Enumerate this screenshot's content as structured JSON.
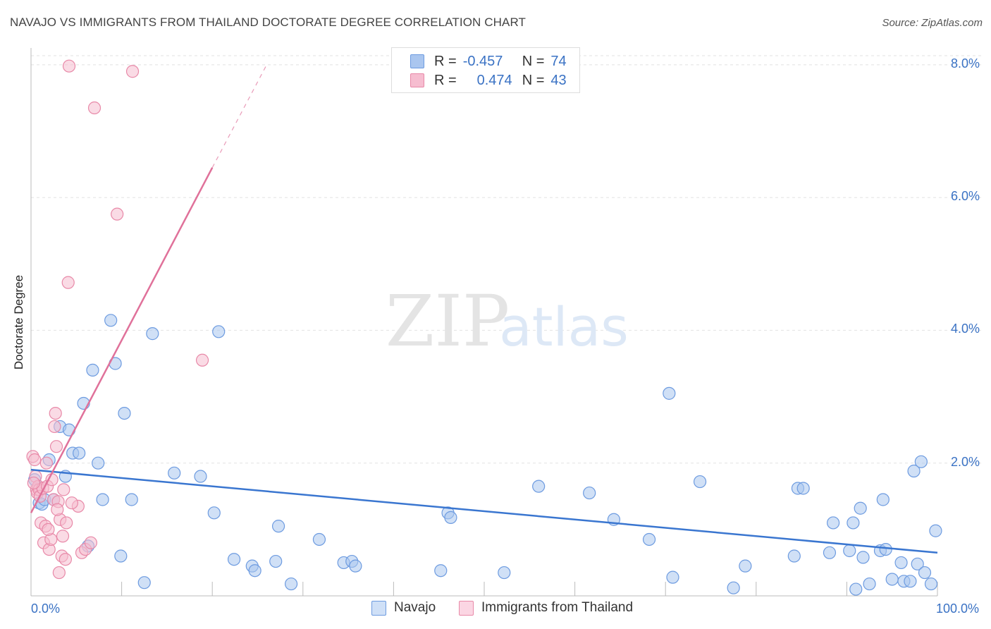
{
  "title": "NAVAJO VS IMMIGRANTS FROM THAILAND DOCTORATE DEGREE CORRELATION CHART",
  "source": "Source: ZipAtlas.com",
  "watermark": {
    "zip": "ZIP",
    "atlas": "atlas"
  },
  "legend": {
    "rows": [
      {
        "r_label": "R =",
        "r_value": "-0.457",
        "n_label": "N =",
        "n_value": "74"
      },
      {
        "r_label": "R =",
        "r_value": "0.474",
        "n_label": "N =",
        "n_value": "43"
      }
    ]
  },
  "chart_data": {
    "type": "scatter",
    "title": "NAVAJO VS IMMIGRANTS FROM THAILAND DOCTORATE DEGREE CORRELATION CHART",
    "xlabel": "",
    "ylabel": "Doctorate Degree",
    "xlim": [
      0,
      100
    ],
    "ylim": [
      0,
      8.2
    ],
    "x_tick_labels": [
      "0.0%",
      "100.0%"
    ],
    "y_ticks": [
      2,
      4,
      6,
      8
    ],
    "y_tick_labels": [
      "2.0%",
      "4.0%",
      "6.0%",
      "8.0%"
    ],
    "grid": true,
    "legend_position": "bottom",
    "colors": {
      "navajo_fill": "#aac6ef",
      "navajo_stroke": "#6d9be0",
      "navajo_line": "#3a76d0",
      "thai_fill": "#f6bdd0",
      "thai_stroke": "#e889a8",
      "thai_line": "#e0719a",
      "axis_text": "#3a72c4"
    },
    "series": [
      {
        "name": "Navajo",
        "trend": {
          "x": [
            0,
            100
          ],
          "y": [
            1.9,
            0.65
          ]
        },
        "points": [
          [
            0.4,
            1.75
          ],
          [
            0.9,
            1.4
          ],
          [
            1.2,
            1.38
          ],
          [
            1.5,
            1.45
          ],
          [
            2.0,
            2.05
          ],
          [
            2.5,
            1.45
          ],
          [
            3.2,
            2.55
          ],
          [
            3.8,
            1.8
          ],
          [
            4.2,
            2.5
          ],
          [
            4.6,
            2.15
          ],
          [
            5.3,
            2.15
          ],
          [
            5.8,
            2.9
          ],
          [
            6.3,
            0.75
          ],
          [
            6.8,
            3.4
          ],
          [
            7.4,
            2.0
          ],
          [
            7.9,
            1.45
          ],
          [
            8.8,
            4.15
          ],
          [
            9.3,
            3.5
          ],
          [
            9.9,
            0.6
          ],
          [
            10.3,
            2.75
          ],
          [
            11.1,
            1.45
          ],
          [
            12.5,
            0.2
          ],
          [
            13.4,
            3.95
          ],
          [
            15.8,
            1.85
          ],
          [
            18.7,
            1.8
          ],
          [
            20.2,
            1.25
          ],
          [
            20.7,
            3.98
          ],
          [
            22.4,
            0.55
          ],
          [
            24.4,
            0.45
          ],
          [
            24.7,
            0.38
          ],
          [
            27.0,
            0.52
          ],
          [
            27.3,
            1.05
          ],
          [
            28.7,
            0.18
          ],
          [
            31.8,
            0.85
          ],
          [
            34.5,
            0.5
          ],
          [
            35.4,
            0.52
          ],
          [
            35.8,
            0.45
          ],
          [
            45.2,
            0.38
          ],
          [
            46.0,
            1.25
          ],
          [
            46.3,
            1.18
          ],
          [
            52.2,
            0.35
          ],
          [
            56.0,
            1.65
          ],
          [
            61.6,
            1.55
          ],
          [
            64.3,
            1.15
          ],
          [
            68.2,
            0.85
          ],
          [
            70.4,
            3.05
          ],
          [
            70.8,
            0.28
          ],
          [
            73.8,
            1.72
          ],
          [
            77.5,
            0.12
          ],
          [
            78.8,
            0.45
          ],
          [
            84.2,
            0.6
          ],
          [
            84.6,
            1.62
          ],
          [
            85.2,
            1.62
          ],
          [
            88.1,
            0.65
          ],
          [
            88.5,
            1.1
          ],
          [
            90.3,
            0.68
          ],
          [
            90.7,
            1.1
          ],
          [
            91.0,
            0.1
          ],
          [
            91.5,
            1.32
          ],
          [
            91.8,
            0.58
          ],
          [
            92.5,
            0.18
          ],
          [
            93.7,
            0.68
          ],
          [
            94.0,
            1.45
          ],
          [
            94.3,
            0.7
          ],
          [
            95.0,
            0.25
          ],
          [
            96.0,
            0.5
          ],
          [
            96.3,
            0.22
          ],
          [
            97.0,
            0.22
          ],
          [
            97.4,
            1.88
          ],
          [
            97.8,
            0.48
          ],
          [
            98.2,
            2.02
          ],
          [
            98.6,
            0.35
          ],
          [
            99.3,
            0.18
          ],
          [
            99.8,
            0.98
          ]
        ]
      },
      {
        "name": "Immigrants from Thailand",
        "trend": {
          "x": [
            0,
            20
          ],
          "y": [
            1.25,
            6.45
          ]
        },
        "trend_dashed": {
          "x": [
            20,
            26
          ],
          "y": [
            6.45,
            8.0
          ]
        },
        "points": [
          [
            0.2,
            2.1
          ],
          [
            0.4,
            2.05
          ],
          [
            0.5,
            1.8
          ],
          [
            0.6,
            1.6
          ],
          [
            0.7,
            1.55
          ],
          [
            0.8,
            1.65
          ],
          [
            0.9,
            1.6
          ],
          [
            1.0,
            1.5
          ],
          [
            1.1,
            1.1
          ],
          [
            1.3,
            1.62
          ],
          [
            1.4,
            0.8
          ],
          [
            1.6,
            1.05
          ],
          [
            1.7,
            2.0
          ],
          [
            1.8,
            1.65
          ],
          [
            2.0,
            0.7
          ],
          [
            2.2,
            0.85
          ],
          [
            2.5,
            1.45
          ],
          [
            2.6,
            2.55
          ],
          [
            2.7,
            2.75
          ],
          [
            2.8,
            2.25
          ],
          [
            3.0,
            1.42
          ],
          [
            3.1,
            0.35
          ],
          [
            3.2,
            1.15
          ],
          [
            3.4,
            0.6
          ],
          [
            3.5,
            0.9
          ],
          [
            3.6,
            1.6
          ],
          [
            3.8,
            0.55
          ],
          [
            3.9,
            1.1
          ],
          [
            4.1,
            4.72
          ],
          [
            4.2,
            7.98
          ],
          [
            5.2,
            1.35
          ],
          [
            5.6,
            0.65
          ],
          [
            6.0,
            0.7
          ],
          [
            6.6,
            0.8
          ],
          [
            7.0,
            7.35
          ],
          [
            9.5,
            5.75
          ],
          [
            11.2,
            7.9
          ],
          [
            18.9,
            3.55
          ],
          [
            2.3,
            1.75
          ],
          [
            1.9,
            1.0
          ],
          [
            0.3,
            1.7
          ],
          [
            4.5,
            1.4
          ],
          [
            2.9,
            1.3
          ]
        ]
      }
    ]
  },
  "bottom_legend": {
    "items": [
      "Navajo",
      "Immigrants from Thailand"
    ]
  }
}
